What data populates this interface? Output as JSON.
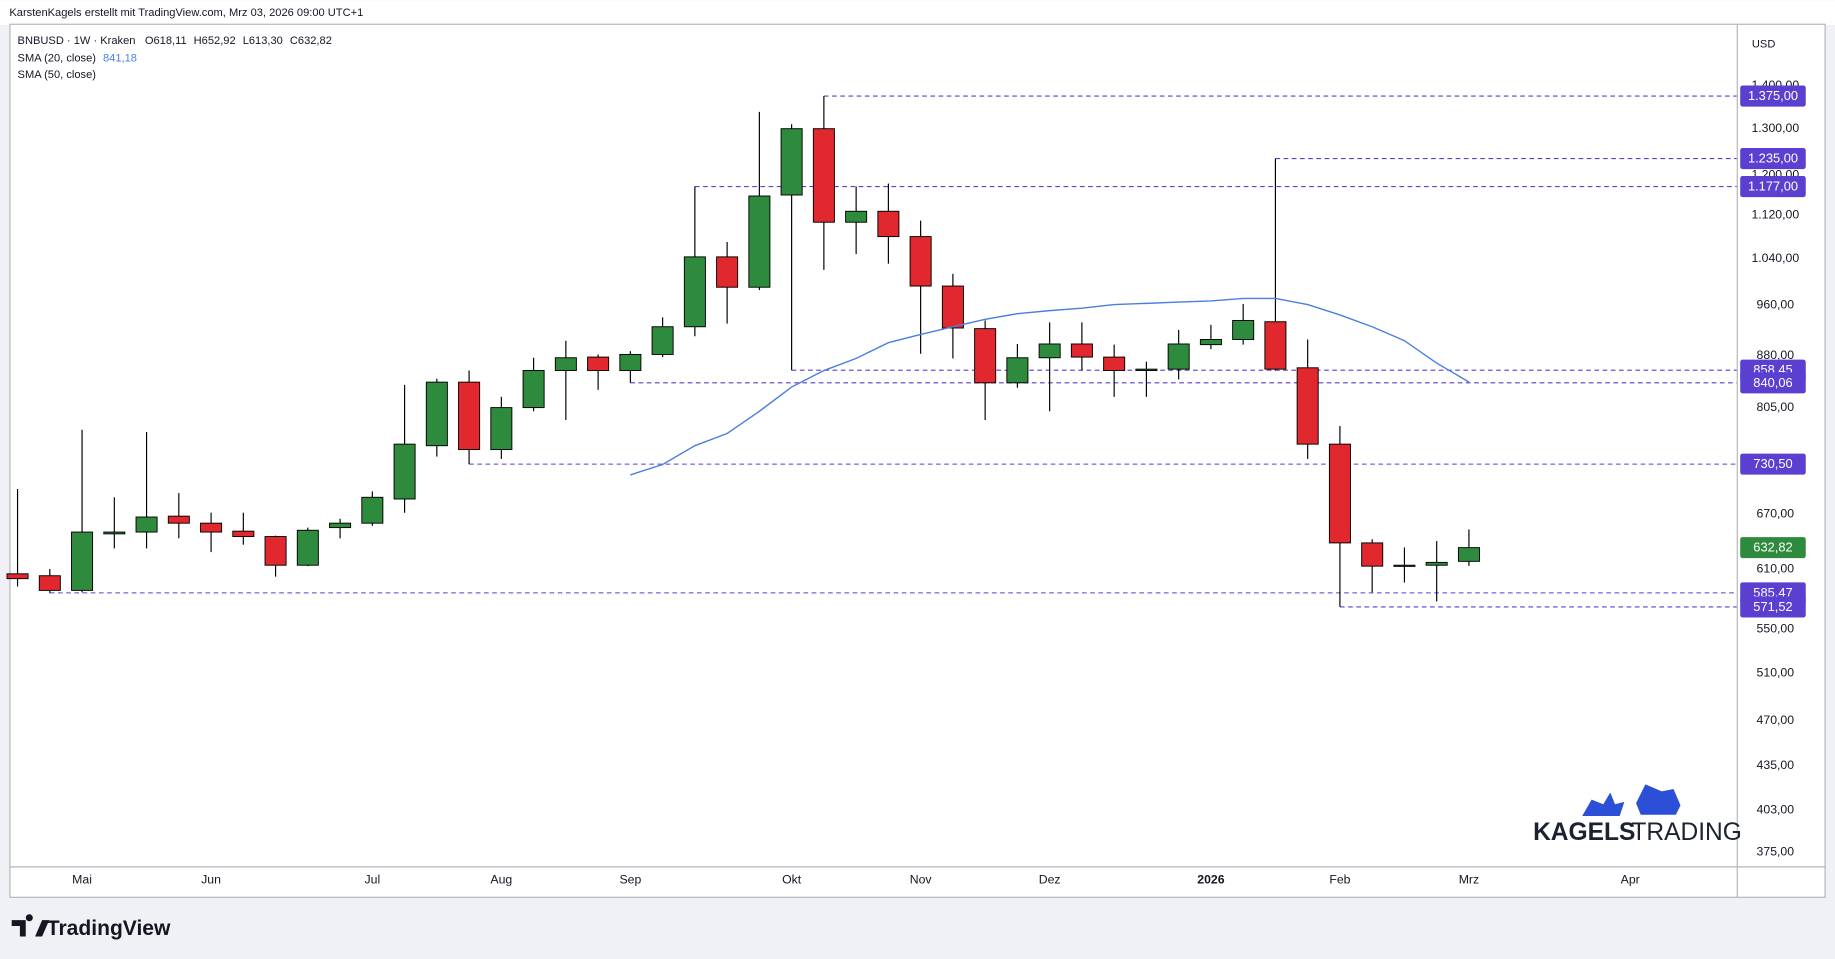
{
  "header": {
    "credit": "KarstenKagels erstellt mit TradingView.com, Mrz 03, 2026 09:00 UTC+1",
    "brand": "TradingView",
    "watermark": [
      "KAGELS",
      "TRADING"
    ]
  },
  "chart_data": {
    "type": "candlestick",
    "legend": {
      "symbol": "BNBUSD · 1W · Kraken",
      "ohlc": [
        "O618,11",
        "H652,92",
        "L613,30",
        "C632,82"
      ],
      "sma20_value": "841,18",
      "sma50": "SMA (50, close)"
    },
    "currency": "USD",
    "categories": [
      null,
      null,
      "Mai",
      null,
      null,
      null,
      "Jun",
      null,
      null,
      null,
      null,
      "Jul",
      null,
      null,
      null,
      "Aug",
      null,
      null,
      null,
      "Sep",
      null,
      null,
      null,
      null,
      "Okt",
      null,
      null,
      null,
      "Nov",
      null,
      null,
      null,
      "Dez",
      null,
      null,
      null,
      null,
      "2026",
      null,
      null,
      null,
      "Feb",
      null,
      null,
      null,
      "Mrz",
      null,
      null,
      null,
      null,
      "Apr"
    ],
    "open": [
      605,
      603,
      588,
      648,
      650,
      668,
      660,
      651,
      645,
      614,
      655,
      660,
      688,
      754,
      841,
      749,
      805,
      858,
      878,
      858,
      882,
      925,
      1043,
      990,
      1160,
      1300,
      1107,
      1128,
      1080,
      992,
      922,
      840,
      877,
      898,
      878,
      858,
      860,
      897,
      905,
      933,
      862,
      756,
      638,
      613,
      614,
      618.11,
      null,
      null,
      null,
      null,
      null
    ],
    "high": [
      700,
      610,
      775,
      690,
      772,
      695,
      672,
      672,
      646,
      655,
      665,
      697,
      837,
      846,
      858,
      820,
      877,
      903,
      882,
      887,
      940,
      1177,
      1070,
      1338,
      1310,
      1375,
      1177,
      1183,
      1110,
      1013,
      935,
      898,
      932,
      932,
      897,
      871,
      920,
      928,
      962,
      1235,
      905,
      780,
      642,
      633,
      640,
      652.92,
      null,
      null,
      null,
      null,
      null
    ],
    "low": [
      592,
      585.47,
      586,
      632,
      632,
      643,
      628,
      636,
      602,
      613,
      643,
      657,
      672,
      740,
      730.5,
      737,
      800,
      788,
      830,
      840.06,
      878,
      910,
      930,
      985,
      858.45,
      1020,
      1048,
      1031,
      883,
      876,
      788,
      833,
      800,
      858,
      820,
      820,
      845,
      890,
      897,
      858,
      737,
      571.52,
      586,
      596,
      577,
      613.3,
      null,
      null,
      null,
      null,
      null
    ],
    "close": [
      600,
      588,
      650,
      650,
      667,
      660,
      650,
      645,
      614,
      652,
      660,
      690,
      756,
      841,
      749,
      805,
      858,
      877,
      858,
      882,
      925,
      1043,
      990,
      1158,
      1300,
      1107,
      1128,
      1080,
      992,
      923,
      840,
      877,
      898,
      878,
      858,
      860,
      898,
      905,
      935,
      860,
      756,
      638,
      613,
      614,
      617,
      632.82,
      null,
      null,
      null,
      null,
      null
    ],
    "up_color": "#2e8b3e",
    "down_color": "#e0282e",
    "series": [
      {
        "name": "SMA (20, close)",
        "color": "#4a7fe0",
        "values": [
          null,
          null,
          null,
          null,
          null,
          null,
          null,
          null,
          null,
          null,
          null,
          null,
          null,
          null,
          null,
          null,
          null,
          null,
          null,
          717,
          730,
          754,
          770,
          800,
          834,
          858,
          876,
          900,
          913,
          925,
          937,
          946,
          951,
          955,
          961,
          963,
          965,
          967,
          971,
          971,
          961,
          944,
          925,
          903,
          869,
          841.18,
          null,
          null,
          null,
          null,
          null
        ]
      }
    ],
    "levels": [
      {
        "value": 1375,
        "label": "1.375,00"
      },
      {
        "value": 1235,
        "label": "1.235,00"
      },
      {
        "value": 1177,
        "label": "1.177,00"
      },
      {
        "value": 858.45,
        "label": "858,45"
      },
      {
        "value": 840.06,
        "label": "840,06"
      },
      {
        "value": 730.5,
        "label": "730,50"
      },
      {
        "value": 585.47,
        "label": "585,47"
      },
      {
        "value": 571.52,
        "label": "571,52"
      }
    ],
    "level_color": "#5b3fd0",
    "last_price": {
      "value": 632.82,
      "label": "632,82"
    },
    "last_price_color": "#2e8b3e",
    "log_scale": true,
    "grid": false,
    "ylim": [
      366,
      1554
    ],
    "yticks": [
      {
        "value": 375,
        "label": "375,00"
      },
      {
        "value": 403,
        "label": "403,00"
      },
      {
        "value": 435,
        "label": "435,00"
      },
      {
        "value": 470,
        "label": "470,00"
      },
      {
        "value": 510,
        "label": "510,00"
      },
      {
        "value": 550,
        "label": "550,00"
      },
      {
        "value": 610,
        "label": "610,00"
      },
      {
        "value": 670,
        "label": "670,00"
      },
      {
        "value": 805,
        "label": "805,00"
      },
      {
        "value": 880,
        "label": "880,00"
      },
      {
        "value": 960,
        "label": "960,00"
      },
      {
        "value": 1040,
        "label": "1.040,00"
      },
      {
        "value": 1120,
        "label": "1.120,00"
      },
      {
        "value": 1200,
        "label": "1.200,00"
      },
      {
        "value": 1300,
        "label": "1.300,00"
      },
      {
        "value": 1400,
        "label": "1.400,00"
      }
    ]
  }
}
